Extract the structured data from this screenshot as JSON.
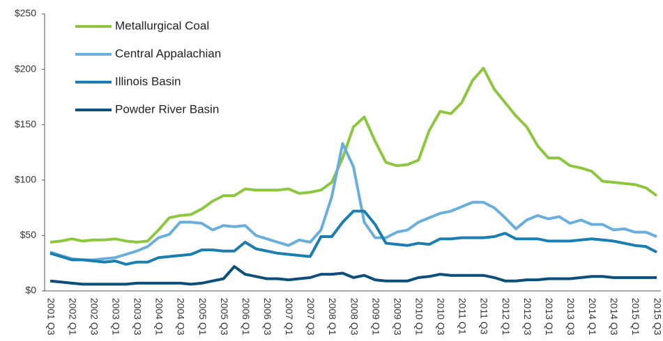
{
  "chart_data": {
    "type": "line",
    "categories": [
      "2001 Q3",
      null,
      "2002 Q1",
      null,
      "2002 Q3",
      null,
      "2003 Q1",
      null,
      "2003 Q3",
      null,
      "2004 Q1",
      null,
      "2004 Q3",
      null,
      "2005 Q1",
      null,
      "2005 Q3",
      null,
      "2006 Q1",
      null,
      "2006 Q3",
      null,
      "2007 Q1",
      null,
      "2007 Q3",
      null,
      "2008 Q1",
      null,
      "2008 Q3",
      null,
      "2009 Q1",
      null,
      "2009 Q3",
      null,
      "2010 Q1",
      null,
      "2010 Q3",
      null,
      "2011 Q1",
      null,
      "2011 Q3",
      null,
      "2012 Q1",
      null,
      "2012 Q3",
      null,
      "2013 Q1",
      null,
      "2013 Q3",
      null,
      "2014 Q1",
      null,
      "2014 Q3",
      null,
      "2015 Q1",
      null,
      "2015 Q3"
    ],
    "series": [
      {
        "name": "Metallurgical Coal",
        "color": "#8dc63f",
        "values": [
          44,
          45,
          47,
          45,
          46,
          46,
          47,
          45,
          44,
          45,
          55,
          66,
          68,
          69,
          74,
          81,
          86,
          86,
          92,
          91,
          91,
          91,
          92,
          88,
          89,
          91,
          98,
          120,
          148,
          157,
          135,
          116,
          113,
          114,
          118,
          145,
          162,
          160,
          170,
          190,
          201,
          182,
          170,
          158,
          148,
          131,
          120,
          120,
          113,
          111,
          108,
          99,
          98,
          97,
          96,
          93,
          86
        ]
      },
      {
        "name": "Central Appalachian",
        "color": "#6aaedc",
        "values": [
          35,
          32,
          29,
          28,
          28,
          29,
          30,
          33,
          36,
          40,
          48,
          51,
          62,
          62,
          61,
          55,
          59,
          58,
          59,
          50,
          47,
          44,
          41,
          46,
          44,
          55,
          85,
          133,
          112,
          62,
          48,
          48,
          53,
          55,
          62,
          66,
          70,
          72,
          76,
          80,
          80,
          75,
          66,
          56,
          64,
          68,
          65,
          67,
          61,
          64,
          60,
          60,
          55,
          56,
          53,
          53,
          49
        ]
      },
      {
        "name": "Illinois Basin",
        "color": "#1a7fb0",
        "values": [
          34,
          31,
          28,
          28,
          27,
          26,
          27,
          24,
          26,
          26,
          30,
          31,
          32,
          33,
          37,
          37,
          36,
          36,
          44,
          38,
          36,
          34,
          33,
          32,
          31,
          49,
          49,
          62,
          72,
          72,
          60,
          43,
          42,
          41,
          43,
          42,
          47,
          47,
          48,
          48,
          48,
          49,
          52,
          47,
          47,
          47,
          45,
          45,
          45,
          46,
          47,
          46,
          45,
          43,
          41,
          40,
          35
        ]
      },
      {
        "name": "Powder River Basin",
        "color": "#0b4f7a",
        "values": [
          9,
          8,
          7,
          6,
          6,
          6,
          6,
          6,
          7,
          7,
          7,
          7,
          7,
          6,
          7,
          9,
          11,
          22,
          15,
          13,
          11,
          11,
          10,
          11,
          12,
          15,
          15,
          16,
          12,
          14,
          10,
          9,
          9,
          9,
          12,
          13,
          15,
          14,
          14,
          14,
          14,
          12,
          9,
          9,
          10,
          10,
          11,
          11,
          11,
          12,
          13,
          13,
          12,
          12,
          12,
          12,
          12
        ]
      }
    ],
    "ylim": [
      0,
      250
    ],
    "yticks": [
      {
        "value": 0,
        "label": "$0"
      },
      {
        "value": 50,
        "label": "$50"
      },
      {
        "value": 100,
        "label": "$100"
      },
      {
        "value": 150,
        "label": "$150"
      },
      {
        "value": 200,
        "label": "$200"
      },
      {
        "value": 250,
        "label": "$250"
      }
    ]
  }
}
